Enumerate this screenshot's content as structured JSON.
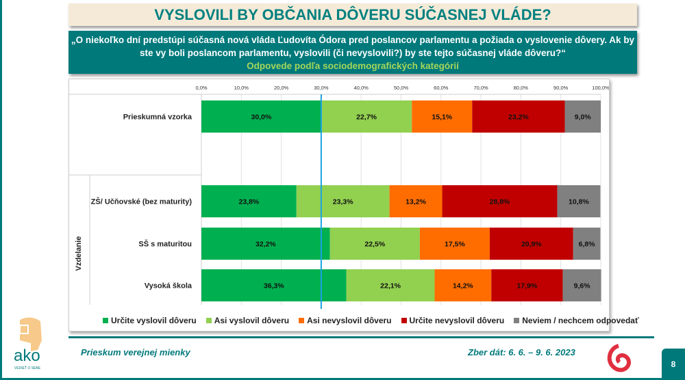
{
  "title": "VYSLOVILI BY OBČANIA DÔVERU SÚČASNEJ VLÁDE?",
  "question": "„O niekoľko dní predstúpi súčasná nová vláda Ľudovíta Ódora pred poslancov parlamentu a požiada o vyslovenie dôvery. Ak by ste vy boli poslancom parlamentu, vyslovili (či nevyslovili?) by ste tejto súčasnej vláde dôveru?“",
  "subtitle": "Odpovede podľa sociodemografických kategórií",
  "footer": {
    "left": "Prieskum verejnej mienky",
    "right": "Zber dát: 6. 6. – 9. 6. 2023",
    "page": "8",
    "logo_text": "ako",
    "logo_tagline": "VEDIEŤ O SEBE"
  },
  "chart_data": {
    "type": "bar",
    "orientation": "horizontal",
    "stacked": true,
    "xlim": [
      0,
      100
    ],
    "ticks": [
      "0,0%",
      "10,0%",
      "20,0%",
      "30,0%",
      "40,0%",
      "50,0%",
      "60,0%",
      "70,0%",
      "80,0%",
      "90,0%",
      "100,0%"
    ],
    "reference_line": 30,
    "grid": true,
    "legend_position": "bottom",
    "group_label": "Vzdelanie",
    "categories": [
      "Prieskumná vzorka",
      "ZŠ/ Učňovské (bez maturity)",
      "SŠ s maturitou",
      "Vysoká škola"
    ],
    "series": [
      {
        "name": "Určite vyslovil dôveru",
        "color": "#00b050",
        "values": [
          30.0,
          23.8,
          32.2,
          36.3
        ],
        "labels": [
          "30,0%",
          "23,8%",
          "32,2%",
          "36,3%"
        ]
      },
      {
        "name": "Asi vyslovil dôveru",
        "color": "#92d050",
        "values": [
          22.7,
          23.3,
          22.5,
          22.1
        ],
        "labels": [
          "22,7%",
          "23,3%",
          "22,5%",
          "22,1%"
        ]
      },
      {
        "name": "Asi nevyslovil dôveru",
        "color": "#ff6d00",
        "values": [
          15.1,
          13.2,
          17.5,
          14.2
        ],
        "labels": [
          "15,1%",
          "13,2%",
          "17,5%",
          "14,2%"
        ]
      },
      {
        "name": "Určite nevyslovil dôveru",
        "color": "#c00000",
        "values": [
          23.2,
          28.8,
          20.9,
          17.9
        ],
        "labels": [
          "23,2%",
          "28,8%",
          "20,9%",
          "17,9%"
        ]
      },
      {
        "name": "Neviem / nechcem odpovedať",
        "color": "#808080",
        "values": [
          9.0,
          10.8,
          6.8,
          9.6
        ],
        "labels": [
          "9,0%",
          "10,8%",
          "6,8%",
          "9,6%"
        ]
      }
    ]
  }
}
